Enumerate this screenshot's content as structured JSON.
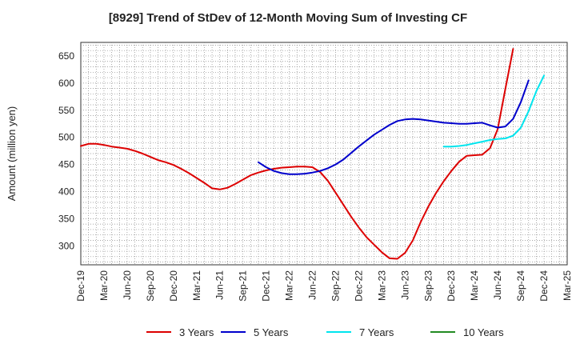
{
  "chart_data": {
    "type": "line",
    "title": "[8929]  Trend of StDev of 12-Month Moving Sum of Investing CF",
    "xlabel": "",
    "ylabel": "Amount (million yen)",
    "ylim": [
      265,
      675
    ],
    "yticks": [
      300,
      350,
      400,
      450,
      500,
      550,
      600,
      650
    ],
    "x_tick_labels": [
      "Dec-19",
      "Mar-20",
      "Jun-20",
      "Sep-20",
      "Dec-20",
      "Mar-21",
      "Jun-21",
      "Sep-21",
      "Dec-21",
      "Mar-22",
      "Jun-22",
      "Sep-22",
      "Dec-22",
      "Mar-23",
      "Jun-23",
      "Sep-23",
      "Dec-23",
      "Mar-24",
      "Jun-24",
      "Sep-24",
      "Dec-24",
      "Mar-25"
    ],
    "grid": true,
    "legend_position": "bottom",
    "series": [
      {
        "name": "3 Years",
        "color": "#dd0000",
        "start_month": "Dec-19",
        "values": [
          484,
          488,
          488,
          486,
          483,
          481,
          479,
          475,
          470,
          464,
          458,
          454,
          449,
          442,
          434,
          425,
          416,
          406,
          404,
          407,
          414,
          422,
          430,
          435,
          439,
          442,
          444,
          445,
          446,
          446,
          445,
          436,
          420,
          398,
          376,
          354,
          334,
          316,
          302,
          288,
          277,
          276,
          287,
          310,
          343,
          372,
          397,
          419,
          438,
          455,
          466,
          467,
          468,
          480,
          515,
          590,
          663
        ]
      },
      {
        "name": "5 Years",
        "color": "#0000cc",
        "start_month": "Nov-21",
        "values": [
          454,
          445,
          438,
          434,
          432,
          432,
          433,
          435,
          438,
          443,
          450,
          459,
          471,
          483,
          494,
          505,
          514,
          523,
          530,
          533,
          534,
          533,
          531,
          529,
          527,
          526,
          525,
          525,
          526,
          527,
          522,
          518,
          520,
          534,
          565,
          605
        ]
      },
      {
        "name": "7 Years",
        "color": "#00e5ee",
        "start_month": "Nov-23",
        "values": [
          483,
          483,
          484,
          486,
          489,
          492,
          495,
          497,
          498,
          503,
          518,
          548,
          585,
          614
        ]
      },
      {
        "name": "10 Years",
        "color": "#228b22",
        "start_month": "Dec-24",
        "values": []
      }
    ]
  }
}
